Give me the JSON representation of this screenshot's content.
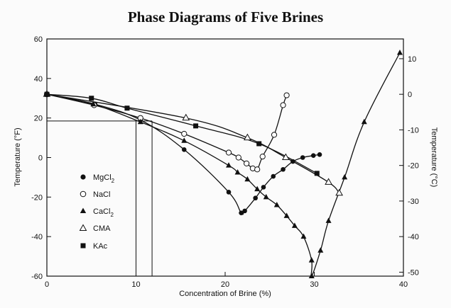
{
  "chart_data": {
    "type": "scatter",
    "title": "Phase Diagrams of Five Brines",
    "xlabel": "Concentration of Brine (%)",
    "ylabel": "Temperature (°F)",
    "ylabel_right": "Temperature (°C)",
    "xlim": [
      0,
      40
    ],
    "ylim": [
      -60,
      60
    ],
    "ylim_right_c": [
      -51.1,
      15.6
    ],
    "x_ticks": [
      "0",
      "10",
      "20",
      "30",
      "40"
    ],
    "y_ticks": [
      "60",
      "40",
      "20",
      "0",
      "-20",
      "-40",
      "-60"
    ],
    "y_ticks_right": [
      "10",
      "0",
      "-10",
      "-20",
      "-30",
      "-40",
      "-50"
    ],
    "grid": false,
    "legend_position": "left",
    "reference_lines": {
      "y_value": 18.5,
      "x_values": [
        10,
        11.8
      ]
    },
    "series": [
      {
        "name": "MgCl2",
        "name_main": "MgCl",
        "name_sub": "2",
        "marker": "circle-filled",
        "points": [
          [
            0,
            32
          ],
          [
            5.4,
            27
          ],
          [
            10.5,
            19
          ],
          [
            15.4,
            4
          ],
          [
            20.4,
            -17.5
          ],
          [
            21.8,
            -28
          ],
          [
            22.2,
            -27
          ],
          [
            23.4,
            -20.5
          ],
          [
            24.3,
            -15
          ],
          [
            25.4,
            -9.5
          ],
          [
            26.5,
            -6
          ],
          [
            27.6,
            -2
          ],
          [
            28.7,
            0
          ],
          [
            29.9,
            1
          ],
          [
            30.6,
            1.5
          ]
        ]
      },
      {
        "name": "NaCl",
        "marker": "circle-open",
        "points": [
          [
            0,
            32
          ],
          [
            5.3,
            26.5
          ],
          [
            10.5,
            20
          ],
          [
            15.4,
            12
          ],
          [
            20.4,
            2.5
          ],
          [
            21.5,
            0
          ],
          [
            22.4,
            -3
          ],
          [
            23.1,
            -5.5
          ],
          [
            23.6,
            -6
          ],
          [
            24.2,
            0.5
          ],
          [
            25.5,
            11.5
          ],
          [
            26.5,
            26.5
          ],
          [
            26.9,
            31.5
          ]
        ]
      },
      {
        "name": "CaCl2",
        "name_main": "CaCl",
        "name_sub": "2",
        "marker": "triangle-filled",
        "points": [
          [
            0,
            32
          ],
          [
            5.2,
            27
          ],
          [
            10.5,
            18
          ],
          [
            15.4,
            8.5
          ],
          [
            20.4,
            -4
          ],
          [
            21.4,
            -7.5
          ],
          [
            22.5,
            -11
          ],
          [
            23.6,
            -16
          ],
          [
            24.6,
            -20
          ],
          [
            25.8,
            -24
          ],
          [
            26.9,
            -29.5
          ],
          [
            27.8,
            -34.5
          ],
          [
            28.8,
            -40
          ],
          [
            29.7,
            -52
          ],
          [
            29.7,
            -60
          ],
          [
            30.7,
            -47
          ],
          [
            31.6,
            -32
          ],
          [
            33.4,
            -10
          ],
          [
            35.6,
            18
          ],
          [
            39.6,
            53
          ]
        ]
      },
      {
        "name": "CMA",
        "marker": "triangle-open",
        "points": [
          [
            0,
            32
          ],
          [
            15.6,
            20
          ],
          [
            22.5,
            10
          ],
          [
            26.8,
            0
          ],
          [
            31.6,
            -12.5
          ],
          [
            32.8,
            -18
          ]
        ]
      },
      {
        "name": "KAc",
        "marker": "square-filled",
        "points": [
          [
            0,
            32
          ],
          [
            5,
            30
          ],
          [
            9,
            25
          ],
          [
            16.7,
            16
          ],
          [
            23.8,
            7
          ],
          [
            30.3,
            -8
          ]
        ]
      }
    ]
  }
}
